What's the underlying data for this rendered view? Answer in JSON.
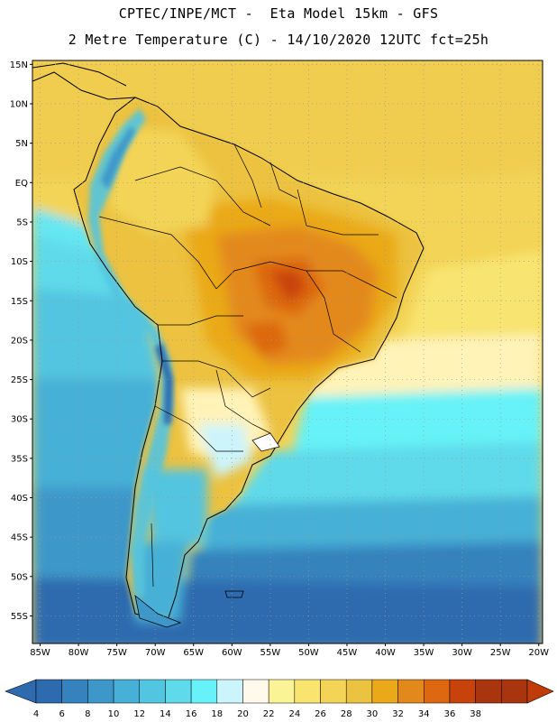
{
  "header": {
    "line1": "CPTEC/INPE/MCT -  Eta Model 15km - GFS",
    "line2": "2 Metre Temperature (C) - 14/10/2020 12UTC fct=25h"
  },
  "map": {
    "region": "South America",
    "lat_labels": [
      "15N",
      "10N",
      "5N",
      "EQ",
      "5S",
      "10S",
      "15S",
      "20S",
      "25S",
      "30S",
      "35S",
      "40S",
      "45S",
      "50S",
      "55S"
    ],
    "lon_labels": [
      "85W",
      "80W",
      "75W",
      "70W",
      "65W",
      "60W",
      "55W",
      "50W",
      "45W",
      "40W",
      "35W",
      "30W",
      "25W",
      "20W"
    ],
    "lat_range": [
      15.5,
      -58.5
    ],
    "lon_range": [
      -86,
      -19.5
    ]
  },
  "colorbar": {
    "labels": [
      "4",
      "6",
      "8",
      "10",
      "12",
      "14",
      "16",
      "18",
      "20",
      "22",
      "24",
      "26",
      "28",
      "30",
      "32",
      "34",
      "36",
      "38"
    ],
    "colors": [
      "#2d6aae",
      "#3582bd",
      "#3d98c9",
      "#46b0d6",
      "#52c5e0",
      "#5edaea",
      "#66f2f8",
      "#ccf4fb",
      "#fffaeb",
      "#fbf497",
      "#f8e46f",
      "#f3d457",
      "#ecc241",
      "#eaa919",
      "#e3891c",
      "#dd6811",
      "#c8420c",
      "#a8350d",
      "#c03b07"
    ]
  }
}
